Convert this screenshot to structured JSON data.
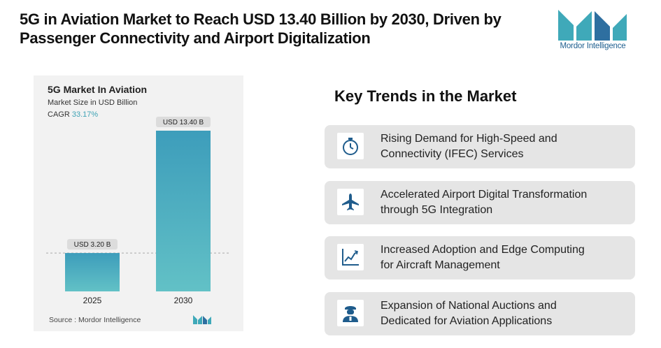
{
  "headline": {
    "line1": "5G in Aviation Market to Reach USD 13.40 Billion by 2030, Driven by",
    "line2": "Passenger Connectivity and Airport Digitalization"
  },
  "brand": {
    "name": "Mordor Intelligence",
    "color": "#3fa9b9"
  },
  "chart_data": {
    "type": "bar",
    "title": "5G Market In Aviation",
    "subtitle": "Market Size in USD Billion",
    "cagr_label": "CAGR",
    "cagr_value": "33.17%",
    "categories": [
      "2025",
      "2030"
    ],
    "values": [
      3.2,
      13.4
    ],
    "data_labels": [
      "USD 3.20 B",
      "USD 13.40 B"
    ],
    "ylim": [
      0,
      13.4
    ],
    "grid": false,
    "reference_line_at": 3.2,
    "bar_color_top": "#3d9dbb",
    "bar_color_bottom": "#62c1c6",
    "source": "Source :  Mordor Intelligence"
  },
  "trends": {
    "title": "Key Trends in the Market",
    "items": [
      {
        "line1": "Rising Demand for High-Speed and",
        "line2": "Connectivity (IFEC) Services",
        "icon": "stopwatch-icon"
      },
      {
        "line1": "Accelerated Airport Digital Transformation",
        "line2": "through 5G Integration",
        "icon": "airplane-icon"
      },
      {
        "line1": "Increased Adoption and Edge Computing",
        "line2": "for Aircraft Management",
        "icon": "line-chart-icon"
      },
      {
        "line1": "Expansion of National Auctions and",
        "line2": "Dedicated for Aviation Applications",
        "icon": "pilot-icon"
      }
    ]
  },
  "icon_color": "#1f5c8c"
}
